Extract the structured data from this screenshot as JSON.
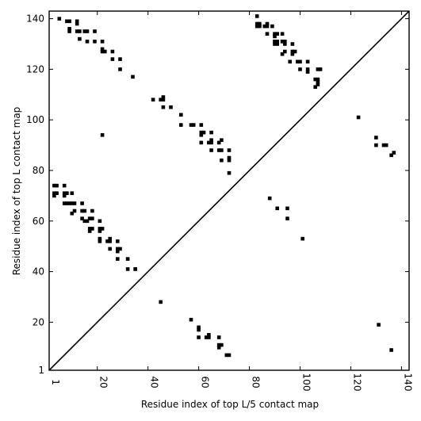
{
  "chart_data": {
    "type": "scatter",
    "title": "",
    "xlabel": "Residue index of top L/5 contact map",
    "ylabel": "Residue index of top L contact map",
    "xlim": [
      1,
      143
    ],
    "ylim": [
      1,
      143
    ],
    "x_ticks": [
      1,
      20,
      40,
      60,
      80,
      100,
      120,
      140
    ],
    "y_ticks": [
      1,
      20,
      40,
      60,
      80,
      100,
      120,
      140
    ],
    "grid": false,
    "diagonal": true,
    "marker": "square",
    "color": "#000000",
    "series": [
      {
        "points_upper_left": [
          [
            5,
            140
          ],
          [
            8,
            139
          ],
          [
            9,
            139
          ],
          [
            9,
            136
          ],
          [
            9,
            135
          ],
          [
            12,
            139
          ],
          [
            12,
            138
          ],
          [
            12,
            135
          ],
          [
            13,
            135
          ],
          [
            13,
            132
          ],
          [
            15,
            135
          ],
          [
            16,
            135
          ],
          [
            16,
            131
          ],
          [
            19,
            135
          ],
          [
            19,
            131
          ],
          [
            22,
            131
          ],
          [
            22,
            128
          ],
          [
            22,
            127
          ],
          [
            23,
            127
          ],
          [
            26,
            127
          ],
          [
            26,
            124
          ],
          [
            29,
            124
          ],
          [
            29,
            120
          ],
          [
            34,
            117
          ],
          [
            42,
            108
          ],
          [
            45,
            108
          ],
          [
            46,
            108
          ],
          [
            46,
            109
          ],
          [
            46,
            105
          ],
          [
            49,
            105
          ],
          [
            53,
            102
          ],
          [
            53,
            98
          ],
          [
            57,
            98
          ],
          [
            58,
            98
          ],
          [
            61,
            98
          ],
          [
            61,
            95
          ],
          [
            61,
            94
          ],
          [
            61,
            91
          ],
          [
            62,
            95
          ],
          [
            65,
            95
          ],
          [
            65,
            92
          ],
          [
            65,
            91
          ],
          [
            64,
            91
          ],
          [
            65,
            88
          ],
          [
            68,
            91
          ],
          [
            69,
            92
          ],
          [
            68,
            88
          ],
          [
            69,
            88
          ],
          [
            69,
            84
          ],
          [
            72,
            88
          ],
          [
            72,
            85
          ],
          [
            72,
            84
          ],
          [
            72,
            79
          ],
          [
            22,
            94
          ],
          [
            3,
            74
          ],
          [
            4,
            74
          ],
          [
            3,
            71
          ],
          [
            3,
            70
          ],
          [
            4,
            71
          ],
          [
            7,
            74
          ],
          [
            7,
            71
          ],
          [
            7,
            70
          ],
          [
            8,
            71
          ],
          [
            7,
            67
          ],
          [
            8,
            67
          ],
          [
            9,
            67
          ],
          [
            10,
            71
          ],
          [
            10,
            67
          ],
          [
            11,
            67
          ],
          [
            10,
            63
          ],
          [
            11,
            64
          ],
          [
            14,
            67
          ],
          [
            14,
            64
          ],
          [
            15,
            64
          ],
          [
            14,
            61
          ],
          [
            15,
            60
          ],
          [
            16,
            60
          ],
          [
            17,
            61
          ],
          [
            18,
            61
          ],
          [
            18,
            64
          ],
          [
            17,
            57
          ],
          [
            18,
            57
          ],
          [
            17,
            56
          ],
          [
            21,
            60
          ],
          [
            21,
            57
          ],
          [
            22,
            57
          ],
          [
            21,
            56
          ],
          [
            21,
            53
          ],
          [
            21,
            52
          ],
          [
            24,
            52
          ],
          [
            25,
            53
          ],
          [
            25,
            52
          ],
          [
            28,
            52
          ],
          [
            25,
            49
          ],
          [
            28,
            49
          ],
          [
            29,
            49
          ],
          [
            28,
            48
          ],
          [
            28,
            45
          ],
          [
            32,
            45
          ],
          [
            32,
            41
          ],
          [
            35,
            41
          ],
          [
            35,
            41
          ]
        ],
        "points_lower_right": [
          [
            83,
            141
          ],
          [
            83,
            138
          ],
          [
            84,
            138
          ],
          [
            83,
            137
          ],
          [
            84,
            137
          ],
          [
            86,
            137
          ],
          [
            87,
            138
          ],
          [
            87,
            137
          ],
          [
            89,
            137
          ],
          [
            87,
            134
          ],
          [
            90,
            134
          ],
          [
            90,
            133
          ],
          [
            91,
            134
          ],
          [
            90,
            131
          ],
          [
            91,
            131
          ],
          [
            90,
            130
          ],
          [
            91,
            130
          ],
          [
            93,
            134
          ],
          [
            94,
            131
          ],
          [
            93,
            131
          ],
          [
            94,
            130
          ],
          [
            94,
            127
          ],
          [
            93,
            126
          ],
          [
            97,
            130
          ],
          [
            97,
            127
          ],
          [
            97,
            126
          ],
          [
            98,
            127
          ],
          [
            96,
            123
          ],
          [
            99,
            123
          ],
          [
            100,
            123
          ],
          [
            100,
            120
          ],
          [
            103,
            123
          ],
          [
            103,
            120
          ],
          [
            103,
            119
          ],
          [
            107,
            120
          ],
          [
            106,
            116
          ],
          [
            107,
            116
          ],
          [
            107,
            115
          ],
          [
            107,
            114
          ],
          [
            106,
            113
          ],
          [
            108,
            120
          ],
          [
            123,
            101
          ],
          [
            130,
            93
          ],
          [
            130,
            90
          ],
          [
            133,
            90
          ],
          [
            134,
            90
          ],
          [
            137,
            87
          ],
          [
            136,
            86
          ],
          [
            88,
            69
          ],
          [
            91,
            65
          ],
          [
            95,
            65
          ],
          [
            95,
            61
          ],
          [
            101,
            53
          ],
          [
            45,
            28
          ],
          [
            57,
            21
          ],
          [
            60,
            18
          ],
          [
            60,
            17
          ],
          [
            60,
            14
          ],
          [
            63,
            14
          ],
          [
            64,
            15
          ],
          [
            64,
            14
          ],
          [
            68,
            14
          ],
          [
            68,
            11
          ],
          [
            69,
            11
          ],
          [
            68,
            10
          ],
          [
            71,
            7
          ],
          [
            72,
            7
          ],
          [
            131,
            19
          ],
          [
            136,
            9
          ]
        ]
      }
    ]
  }
}
